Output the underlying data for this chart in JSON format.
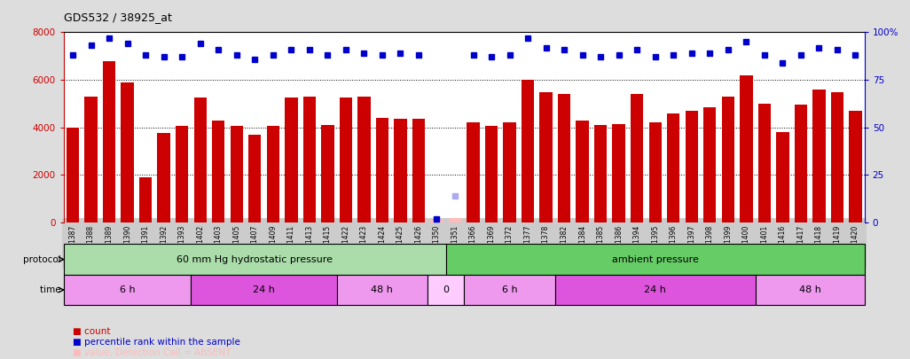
{
  "title": "GDS532 / 38925_at",
  "samples": [
    "GSM11387",
    "GSM11388",
    "GSM11389",
    "GSM11390",
    "GSM11391",
    "GSM11392",
    "GSM11393",
    "GSM11402",
    "GSM11403",
    "GSM11405",
    "GSM11407",
    "GSM11409",
    "GSM11411",
    "GSM11413",
    "GSM11415",
    "GSM11422",
    "GSM11423",
    "GSM11424",
    "GSM11425",
    "GSM11426",
    "GSM11350",
    "GSM11351",
    "GSM11366",
    "GSM11369",
    "GSM11372",
    "GSM11377",
    "GSM11378",
    "GSM11382",
    "GSM11384",
    "GSM11385",
    "GSM11386",
    "GSM11394",
    "GSM11395",
    "GSM11396",
    "GSM11397",
    "GSM11398",
    "GSM11399",
    "GSM11400",
    "GSM11401",
    "GSM11416",
    "GSM11417",
    "GSM11418",
    "GSM11419",
    "GSM11420"
  ],
  "bar_values": [
    4000,
    5300,
    6800,
    5900,
    1900,
    3750,
    4050,
    5250,
    4300,
    4050,
    3700,
    4050,
    5250,
    5300,
    4100,
    5250,
    5300,
    4400,
    4350,
    4350,
    100,
    200,
    4200,
    4050,
    4200,
    6000,
    5500,
    5400,
    4300,
    4100,
    4150,
    5400,
    4200,
    4600,
    4700,
    4850,
    5300,
    6200,
    5000,
    3800,
    4950,
    5600,
    5500,
    4700
  ],
  "percentile_values": [
    88,
    93,
    97,
    94,
    88,
    87,
    87,
    94,
    91,
    88,
    86,
    88,
    91,
    91,
    88,
    91,
    89,
    88,
    89,
    88,
    2,
    14,
    88,
    87,
    88,
    97,
    92,
    91,
    88,
    87,
    88,
    91,
    87,
    88,
    89,
    89,
    91,
    95,
    88,
    84,
    88,
    92,
    91,
    88
  ],
  "absent_bar_indices": [
    20,
    21
  ],
  "absent_rank_indices": [
    21
  ],
  "bar_color": "#cc0000",
  "absent_bar_color": "#ffbbbb",
  "percentile_color": "#0000cc",
  "absent_rank_color": "#aaaaee",
  "ylim_left": [
    0,
    8000
  ],
  "ylim_right": [
    0,
    100
  ],
  "yticks_left": [
    0,
    2000,
    4000,
    6000,
    8000
  ],
  "yticks_right": [
    0,
    25,
    50,
    75,
    100
  ],
  "protocol_groups": [
    {
      "label": "60 mm Hg hydrostatic pressure",
      "start": 0,
      "end": 21,
      "color": "#aaddaa"
    },
    {
      "label": "ambient pressure",
      "start": 21,
      "end": 44,
      "color": "#66cc66"
    }
  ],
  "time_groups": [
    {
      "label": "6 h",
      "start": 0,
      "end": 7,
      "color": "#ee99ee"
    },
    {
      "label": "24 h",
      "start": 7,
      "end": 15,
      "color": "#dd55dd"
    },
    {
      "label": "48 h",
      "start": 15,
      "end": 20,
      "color": "#ee99ee"
    },
    {
      "label": "0",
      "start": 20,
      "end": 22,
      "color": "#ffccff"
    },
    {
      "label": "6 h",
      "start": 22,
      "end": 27,
      "color": "#ee99ee"
    },
    {
      "label": "24 h",
      "start": 27,
      "end": 38,
      "color": "#dd55dd"
    },
    {
      "label": "48 h",
      "start": 38,
      "end": 44,
      "color": "#ee99ee"
    }
  ],
  "fig_bg_color": "#dddddd",
  "plot_bg_color": "#ffffff",
  "tick_bg_color": "#cccccc",
  "grid_color": "#000000",
  "left_axis_color": "#cc0000",
  "right_axis_color": "#0000cc"
}
